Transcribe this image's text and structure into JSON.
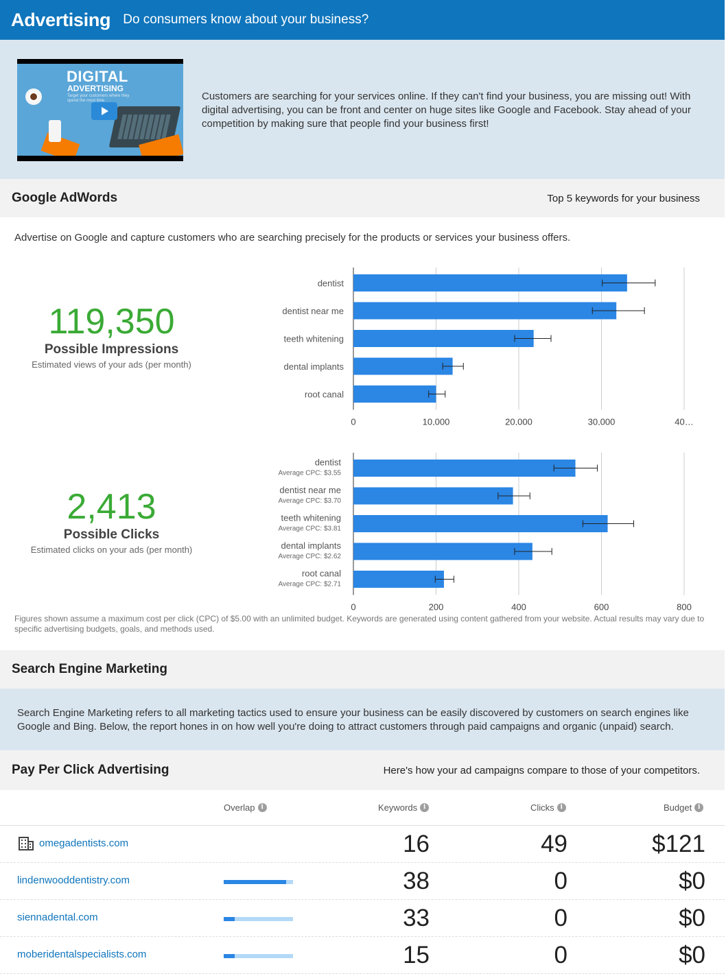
{
  "header": {
    "title": "Advertising",
    "subtitle": "Do consumers know about your business?"
  },
  "intro": {
    "video_title_1": "DIGITAL",
    "video_title_2": "ADVERTISING",
    "video_caption": "Target your customers where they spend the most time",
    "text": "Customers are searching for your services online. If they can't find your business, you are missing out! With digital advertising, you can be front and center on huge sites like Google and Facebook. Stay ahead of your competition by making sure that people find your business first!"
  },
  "adwords": {
    "heading": "Google AdWords",
    "right_label": "Top 5 keywords for your business",
    "description": "Advertise on Google and capture customers who are searching precisely for the products or services your business offers.",
    "impressions": {
      "value": "119,350",
      "label": "Possible Impressions",
      "sub": "Estimated views of your ads (per month)"
    },
    "clicks": {
      "value": "2,413",
      "label": "Possible Clicks",
      "sub": "Estimated clicks on your ads (per month)"
    },
    "footnote": "Figures shown assume a maximum cost per click (CPC) of $5.00 with an unlimited budget. Keywords are generated using content gathered from your website. Actual results may vary due to specific advertising budgets, goals, and methods used."
  },
  "chart_data": [
    {
      "type": "bar",
      "orientation": "horizontal",
      "categories": [
        "dentist",
        "dentist near me",
        "teeth whitening",
        "dental implants",
        "root canal"
      ],
      "values": [
        33100,
        31800,
        21800,
        12000,
        10000
      ],
      "error_low": [
        30100,
        28900,
        19500,
        10800,
        9100
      ],
      "error_high": [
        36500,
        35200,
        23900,
        13300,
        11100
      ],
      "xlim": [
        0,
        40000
      ],
      "ticks": [
        "0",
        "10,000",
        "20,000",
        "30,000",
        "40…"
      ],
      "grid": true,
      "bar_color": "#2b86e4"
    },
    {
      "type": "bar",
      "orientation": "horizontal",
      "categories": [
        "dentist",
        "dentist near me",
        "teeth whitening",
        "dental implants",
        "root canal"
      ],
      "sublabels": [
        "Average CPC: $3.55",
        "Average CPC: $3.70",
        "Average CPC: $3.81",
        "Average CPC: $2.62",
        "Average CPC: $2.71"
      ],
      "values": [
        537,
        386,
        615,
        433,
        219
      ],
      "error_low": [
        485,
        350,
        555,
        390,
        198
      ],
      "error_high": [
        590,
        427,
        678,
        480,
        243
      ],
      "xlim": [
        0,
        800
      ],
      "ticks": [
        "0",
        "200",
        "400",
        "600",
        "800"
      ],
      "grid": true,
      "bar_color": "#2b86e4"
    }
  ],
  "sem": {
    "heading": "Search Engine Marketing",
    "description": "Search Engine Marketing refers to all marketing tactics used to ensure your business can be easily discovered by customers on search engines like Google and Bing. Below, the report hones in on how well you're doing to attract customers through paid campaigns and organic (unpaid) search."
  },
  "ppc": {
    "heading": "Pay Per Click Advertising",
    "right_label": "Here's how your ad campaigns compare to those of your competitors.",
    "columns": {
      "overlap": "Overlap",
      "keywords": "Keywords",
      "clicks": "Clicks",
      "budget": "Budget"
    },
    "rows": [
      {
        "domain": "omegadentists.com",
        "own": true,
        "overlap": null,
        "keywords": "16",
        "clicks": "49",
        "budget": "$121"
      },
      {
        "domain": "lindenwooddentistry.com",
        "own": false,
        "overlap": 0.9,
        "keywords": "38",
        "clicks": "0",
        "budget": "$0"
      },
      {
        "domain": "siennadental.com",
        "own": false,
        "overlap": 0.16,
        "keywords": "33",
        "clicks": "0",
        "budget": "$0"
      },
      {
        "domain": "moberidentalspecialists.com",
        "own": false,
        "overlap": 0.16,
        "keywords": "15",
        "clicks": "0",
        "budget": "$0"
      }
    ]
  }
}
